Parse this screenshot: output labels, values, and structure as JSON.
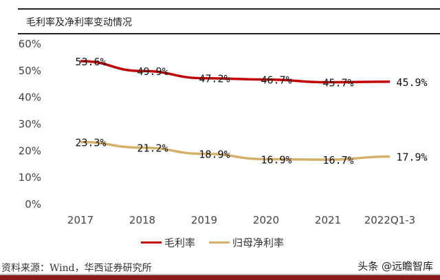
{
  "header": {
    "title": "毛利率及净利率变动情况"
  },
  "chart_data": {
    "type": "line",
    "title": "毛利率及净利率变动情况",
    "categories": [
      "2017",
      "2018",
      "2019",
      "2020",
      "2021",
      "2022Q1-3"
    ],
    "series": [
      {
        "name": "毛利率",
        "values": [
          53.6,
          49.9,
          47.2,
          46.7,
          45.7,
          45.9
        ],
        "labels": [
          "53.6%",
          "49.9%",
          "47.2%",
          "46.7%",
          "45.7%",
          "45.9%"
        ],
        "color": "#c00000"
      },
      {
        "name": "归母净利率",
        "values": [
          23.3,
          21.2,
          18.9,
          16.9,
          16.7,
          17.9
        ],
        "labels": [
          "23.3%",
          "21.2%",
          "18.9%",
          "16.9%",
          "16.7%",
          "17.9%"
        ],
        "color": "#d4b06a"
      }
    ],
    "yticks": [
      "0%",
      "10%",
      "20%",
      "30%",
      "40%",
      "50%",
      "60%"
    ],
    "ylim": [
      0,
      60
    ],
    "grid": false,
    "legend": "bottom"
  },
  "footer": {
    "source": "资料来源：Wind，华西证券研究所",
    "watermark": "头条 @远瞻智库"
  }
}
